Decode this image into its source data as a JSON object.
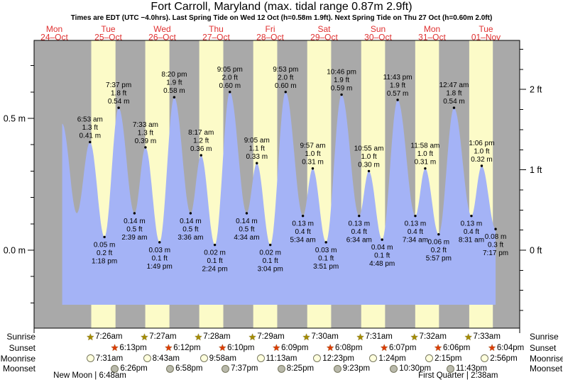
{
  "colors": {
    "night_stripe": "#a9a9a9",
    "daylight_stripe": "#fcfbc8",
    "tide_fill": "#a4b3f6",
    "day_label_red": "#e03030",
    "sunrise_star": "#a38b00",
    "sunset_star": "#dd3b00",
    "moonrise_fill": "#ffffdd",
    "moonset_fill": "#b9b9ab",
    "axis_black": "#000000"
  },
  "chart_data": {
    "type": "area",
    "title": "Fort Carroll, Maryland (max. tidal range 0.87m 2.9ft)",
    "subtitle": "Times are EDT (UTC −4.0hrs). Last Spring Tide on Wed 12 Oct (h=0.58m 1.9ft). Next Spring Tide on Thu 27 Oct (h=0.60m 2.0ft)",
    "ylabel_left_units": "m",
    "ylabel_right_units": "ft",
    "y_axis_left_m": {
      "major": [
        {
          "label": "0.5 m",
          "value": 0.5
        },
        {
          "label": "0.0 m",
          "value": 0.0
        }
      ],
      "minor_step": 0.1
    },
    "y_axis_right_ft": {
      "major": [
        {
          "label": "2 ft",
          "value": 2
        },
        {
          "label": "1 ft",
          "value": 1
        },
        {
          "label": "0 ft",
          "value": 0
        }
      ],
      "minor_step": 0.25
    },
    "days": [
      {
        "name": "Mon",
        "date": "24–Oct"
      },
      {
        "name": "Tue",
        "date": "25–Oct"
      },
      {
        "name": "Wed",
        "date": "26–Oct"
      },
      {
        "name": "Thu",
        "date": "27–Oct"
      },
      {
        "name": "Fri",
        "date": "28–Oct"
      },
      {
        "name": "Sat",
        "date": "29–Oct"
      },
      {
        "name": "Sun",
        "date": "30–Oct"
      },
      {
        "name": "Mon",
        "date": "31–Oct"
      },
      {
        "name": "Tue",
        "date": "01–Nov"
      }
    ],
    "tides": [
      {
        "day": 0,
        "time": "6:53 am",
        "type": "high",
        "ft": "1.3 ft",
        "m": "0.41 m"
      },
      {
        "day": 0,
        "time": "1:18 pm",
        "type": "low",
        "ft": "0.2 ft",
        "m": "0.05 m"
      },
      {
        "day": 0,
        "time": "7:37 pm",
        "type": "high",
        "ft": "1.8 ft",
        "m": "0.54 m"
      },
      {
        "day": 1,
        "time": "2:39 am",
        "type": "low",
        "ft": "0.5 ft",
        "m": "0.14 m"
      },
      {
        "day": 1,
        "time": "7:33 am",
        "type": "high",
        "ft": "1.3 ft",
        "m": "0.39 m"
      },
      {
        "day": 1,
        "time": "1:49 pm",
        "type": "low",
        "ft": "0.1 ft",
        "m": "0.03 m"
      },
      {
        "day": 1,
        "time": "8:20 pm",
        "type": "high",
        "ft": "1.9 ft",
        "m": "0.58 m"
      },
      {
        "day": 2,
        "time": "3:36 am",
        "type": "low",
        "ft": "0.5 ft",
        "m": "0.14 m"
      },
      {
        "day": 2,
        "time": "8:17 am",
        "type": "high",
        "ft": "1.2 ft",
        "m": "0.36 m"
      },
      {
        "day": 2,
        "time": "2:24 pm",
        "type": "low",
        "ft": "0.1 ft",
        "m": "0.02 m"
      },
      {
        "day": 2,
        "time": "9:05 pm",
        "type": "high",
        "ft": "2.0 ft",
        "m": "0.60 m"
      },
      {
        "day": 3,
        "time": "4:34 am",
        "type": "low",
        "ft": "0.5 ft",
        "m": "0.14 m"
      },
      {
        "day": 3,
        "time": "9:05 am",
        "type": "high",
        "ft": "1.1 ft",
        "m": "0.33 m"
      },
      {
        "day": 3,
        "time": "3:04 pm",
        "type": "low",
        "ft": "0.1 ft",
        "m": "0.02 m"
      },
      {
        "day": 3,
        "time": "9:53 pm",
        "type": "high",
        "ft": "2.0 ft",
        "m": "0.60 m"
      },
      {
        "day": 4,
        "time": "5:34 am",
        "type": "low",
        "ft": "0.4 ft",
        "m": "0.13 m"
      },
      {
        "day": 4,
        "time": "9:57 am",
        "type": "high",
        "ft": "1.0 ft",
        "m": "0.31 m"
      },
      {
        "day": 4,
        "time": "3:51 pm",
        "type": "low",
        "ft": "0.1 ft",
        "m": "0.03 m"
      },
      {
        "day": 4,
        "time": "10:46 pm",
        "type": "high",
        "ft": "1.9 ft",
        "m": "0.59 m"
      },
      {
        "day": 5,
        "time": "6:34 am",
        "type": "low",
        "ft": "0.4 ft",
        "m": "0.13 m"
      },
      {
        "day": 5,
        "time": "10:55 am",
        "type": "high",
        "ft": "1.0 ft",
        "m": "0.30 m"
      },
      {
        "day": 5,
        "time": "4:48 pm",
        "type": "low",
        "ft": "0.1 ft",
        "m": "0.04 m"
      },
      {
        "day": 5,
        "time": "11:43 pm",
        "type": "high",
        "ft": "1.9 ft",
        "m": "0.57 m"
      },
      {
        "day": 6,
        "time": "7:34 am",
        "type": "low",
        "ft": "0.4 ft",
        "m": "0.13 m"
      },
      {
        "day": 6,
        "time": "11:58 am",
        "type": "high",
        "ft": "1.0 ft",
        "m": "0.31 m"
      },
      {
        "day": 6,
        "time": "5:57 pm",
        "type": "low",
        "ft": "0.2 ft",
        "m": "0.06 m"
      },
      {
        "day": 7,
        "time": "12:47 am",
        "type": "high",
        "ft": "1.8 ft",
        "m": "0.54 m"
      },
      {
        "day": 7,
        "time": "8:31 am",
        "type": "low",
        "ft": "0.4 ft",
        "m": "0.13 m"
      },
      {
        "day": 7,
        "time": "1:06 pm",
        "type": "high",
        "ft": "1.0 ft",
        "m": "0.32 m"
      },
      {
        "day": 7,
        "time": "7:17 pm",
        "type": "low",
        "ft": "0.3 ft",
        "m": "0.08 m"
      }
    ],
    "lead_in_curve": [
      {
        "t_hours": -5.5,
        "height_m": 0.48
      },
      {
        "t_hours": 1.0,
        "height_m": 0.14
      }
    ]
  },
  "astro": {
    "row_labels": [
      "Sunrise",
      "Sunset",
      "Moonrise",
      "Moonset"
    ],
    "sunrise": [
      {
        "day": 0,
        "time": "7:26am"
      },
      {
        "day": 1,
        "time": "7:27am"
      },
      {
        "day": 2,
        "time": "7:28am"
      },
      {
        "day": 3,
        "time": "7:29am"
      },
      {
        "day": 4,
        "time": "7:30am"
      },
      {
        "day": 5,
        "time": "7:31am"
      },
      {
        "day": 6,
        "time": "7:32am"
      },
      {
        "day": 7,
        "time": "7:33am"
      }
    ],
    "sunset": [
      {
        "day": 0,
        "time": "6:13pm"
      },
      {
        "day": 1,
        "time": "6:12pm"
      },
      {
        "day": 2,
        "time": "6:10pm"
      },
      {
        "day": 3,
        "time": "6:09pm"
      },
      {
        "day": 4,
        "time": "6:08pm"
      },
      {
        "day": 5,
        "time": "6:07pm"
      },
      {
        "day": 6,
        "time": "6:06pm"
      },
      {
        "day": 7,
        "time": "6:04pm"
      }
    ],
    "moonrise": [
      {
        "day": 0,
        "time": "7:31am"
      },
      {
        "day": 1,
        "time": "8:43am"
      },
      {
        "day": 2,
        "time": "9:58am"
      },
      {
        "day": 3,
        "time": "11:13am"
      },
      {
        "day": 4,
        "time": "12:23pm"
      },
      {
        "day": 5,
        "time": "1:24pm"
      },
      {
        "day": 6,
        "time": "2:15pm"
      },
      {
        "day": 7,
        "time": "2:56pm"
      }
    ],
    "moonset": [
      {
        "day": 0,
        "time": "6:26pm"
      },
      {
        "day": 1,
        "time": "6:58pm"
      },
      {
        "day": 2,
        "time": "7:37pm"
      },
      {
        "day": 3,
        "time": "8:25pm"
      },
      {
        "day": 4,
        "time": "9:23pm"
      },
      {
        "day": 5,
        "time": "10:30pm"
      },
      {
        "day": 6,
        "time": "11:43pm"
      }
    ],
    "phases": [
      {
        "day": 0,
        "time": "6:48am",
        "text": "New Moon | 6:48am"
      },
      {
        "day": 7,
        "time": "2:38am",
        "text": "First Quarter | 2:38am"
      }
    ]
  }
}
